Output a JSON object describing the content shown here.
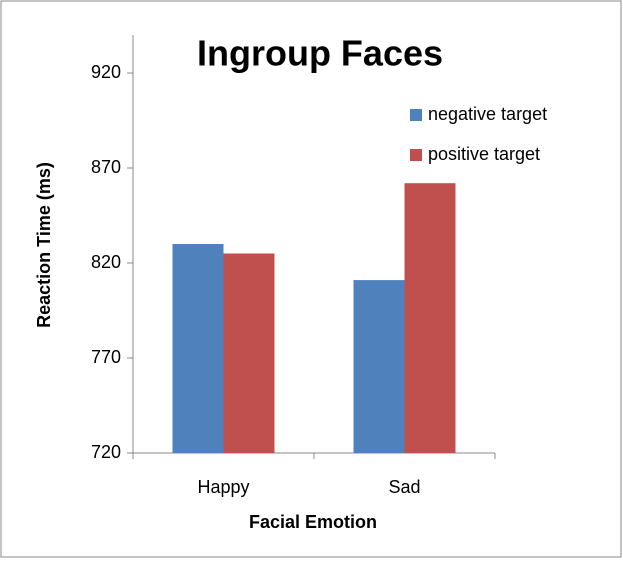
{
  "chart_data": {
    "type": "bar",
    "title": "Ingroup Faces",
    "x_label": "Facial Emotion",
    "y_label": "Reaction Time (ms)",
    "categories": [
      "Happy",
      "Sad"
    ],
    "series": [
      {
        "name": "negative target",
        "color": "#4f81bd",
        "values": [
          830,
          811
        ]
      },
      {
        "name": "positive target",
        "color": "#c0504d",
        "values": [
          825,
          862
        ]
      }
    ],
    "ylim": [
      720,
      940
    ],
    "yticks": [
      720,
      770,
      820,
      870,
      920
    ],
    "grid": false,
    "legend": "upper right"
  }
}
